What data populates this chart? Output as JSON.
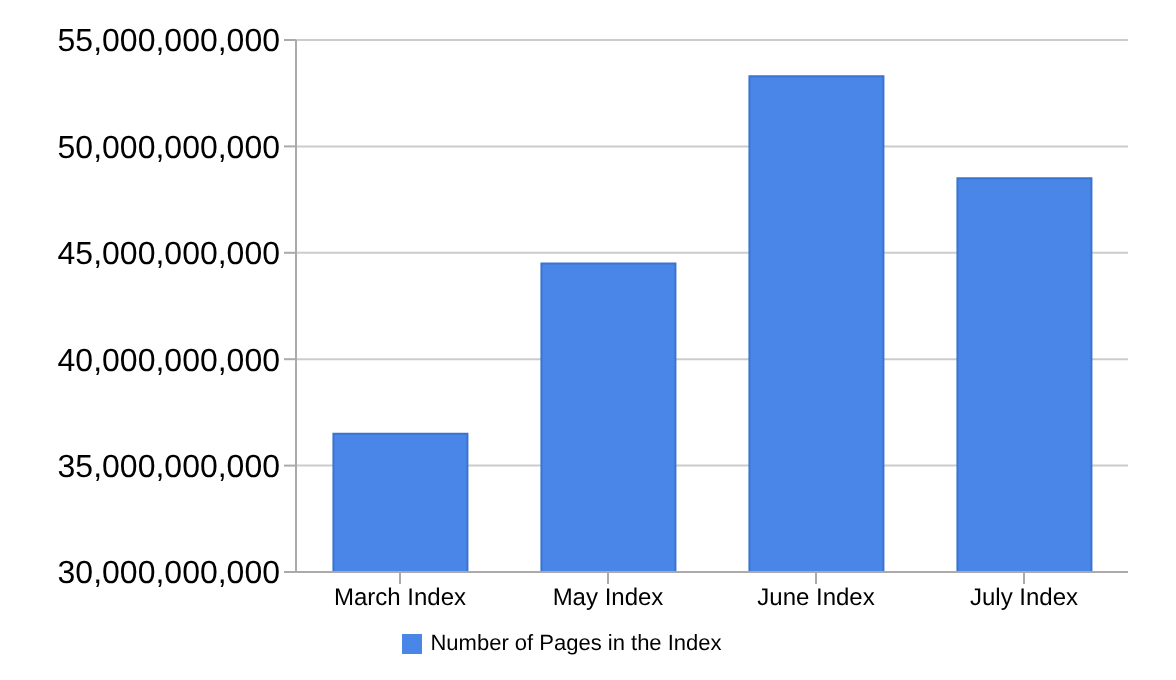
{
  "chart_data": {
    "type": "bar",
    "categories": [
      "March Index",
      "May Index",
      "June Index",
      "July Index"
    ],
    "series": [
      {
        "name": "Number of Pages in the Index",
        "color": "#4a86e8",
        "values": [
          36500000000,
          44500000000,
          53300000000,
          48500000000
        ]
      }
    ],
    "ylim": [
      30000000000,
      55000000000
    ],
    "yticks": [
      {
        "value": 30000000000,
        "label": "30,000,000,000"
      },
      {
        "value": 35000000000,
        "label": "35,000,000,000"
      },
      {
        "value": 40000000000,
        "label": "40,000,000,000"
      },
      {
        "value": 45000000000,
        "label": "45,000,000,000"
      },
      {
        "value": 50000000000,
        "label": "50,000,000,000"
      },
      {
        "value": 55000000000,
        "label": "55,000,000,000"
      }
    ],
    "grid": "y",
    "legend": "bottom"
  }
}
